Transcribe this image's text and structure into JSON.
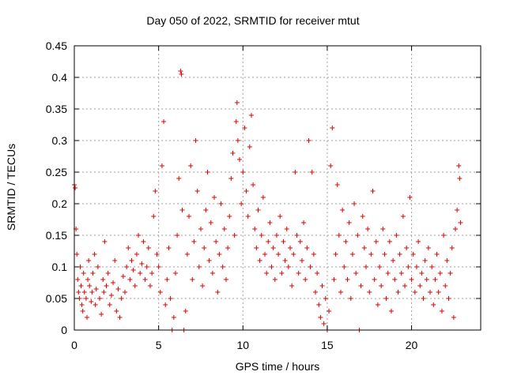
{
  "chart_data": {
    "type": "scatter",
    "title": "Day 050 of 2022, SRMTID for receiver mtut",
    "xlabel": "GPS time / hours",
    "ylabel": "SRMTID / TECUs",
    "xlim": [
      0,
      24.1
    ],
    "ylim": [
      0,
      0.45
    ],
    "xticks": [
      0,
      5,
      10,
      15,
      20
    ],
    "yticks": [
      0,
      0.05,
      0.1,
      0.15,
      0.2,
      0.25,
      0.3,
      0.35,
      0.4,
      0.45
    ],
    "ytick_labels": [
      "0",
      "0.05",
      "0.1",
      "0.15",
      "0.2",
      "0.25",
      "0.3",
      "0.35",
      "0.4",
      "0.45"
    ],
    "grid": true,
    "marker": "+",
    "color": "#e00000",
    "series": [
      {
        "points": [
          [
            0.0,
            0.23
          ],
          [
            0.05,
            0.225
          ],
          [
            0.1,
            0.16
          ],
          [
            0.15,
            0.12
          ],
          [
            0.2,
            0.08
          ],
          [
            0.25,
            0.06
          ],
          [
            0.3,
            0.05
          ],
          [
            0.35,
            0.1
          ],
          [
            0.4,
            0.07
          ],
          [
            0.45,
            0.04
          ],
          [
            0.5,
            0.03
          ],
          [
            0.55,
            0.09
          ],
          [
            0.6,
            0.06
          ],
          [
            0.7,
            0.05
          ],
          [
            0.75,
            0.02
          ],
          [
            0.8,
            0.08
          ],
          [
            0.85,
            0.11
          ],
          [
            0.9,
            0.07
          ],
          [
            1.0,
            0.045
          ],
          [
            1.05,
            0.06
          ],
          [
            1.1,
            0.09
          ],
          [
            1.2,
            0.12
          ],
          [
            1.25,
            0.04
          ],
          [
            1.3,
            0.065
          ],
          [
            1.4,
            0.1
          ],
          [
            1.5,
            0.05
          ],
          [
            1.6,
            0.025
          ],
          [
            1.7,
            0.08
          ],
          [
            1.75,
            0.06
          ],
          [
            1.8,
            0.14
          ],
          [
            1.9,
            0.07
          ],
          [
            2.0,
            0.09
          ],
          [
            2.1,
            0.04
          ],
          [
            2.2,
            0.055
          ],
          [
            2.3,
            0.075
          ],
          [
            2.4,
            0.11
          ],
          [
            2.5,
            0.03
          ],
          [
            2.6,
            0.065
          ],
          [
            2.7,
            0.02
          ],
          [
            2.8,
            0.05
          ],
          [
            2.9,
            0.085
          ],
          [
            3.0,
            0.06
          ],
          [
            3.1,
            0.1
          ],
          [
            3.2,
            0.13
          ],
          [
            3.3,
            0.08
          ],
          [
            3.4,
            0.11
          ],
          [
            3.5,
            0.095
          ],
          [
            3.6,
            0.07
          ],
          [
            3.7,
            0.12
          ],
          [
            3.8,
            0.15
          ],
          [
            3.9,
            0.09
          ],
          [
            4.0,
            0.105
          ],
          [
            4.1,
            0.14
          ],
          [
            4.2,
            0.08
          ],
          [
            4.3,
            0.1
          ],
          [
            4.4,
            0.13
          ],
          [
            4.5,
            0.07
          ],
          [
            4.6,
            0.09
          ],
          [
            4.7,
            0.18
          ],
          [
            4.8,
            0.22
          ],
          [
            4.9,
            0.12
          ],
          [
            5.0,
            0.1
          ],
          [
            5.1,
            0.06
          ],
          [
            5.2,
            0.26
          ],
          [
            5.3,
            0.33
          ],
          [
            5.4,
            0.04
          ],
          [
            5.5,
            0.08
          ],
          [
            5.6,
            0.13
          ],
          [
            5.7,
            0.05
          ],
          [
            5.8,
            0.0
          ],
          [
            5.9,
            0.02
          ],
          [
            6.0,
            0.09
          ],
          [
            6.1,
            0.15
          ],
          [
            6.2,
            0.24
          ],
          [
            6.3,
            0.41
          ],
          [
            6.35,
            0.405
          ],
          [
            6.4,
            0.19
          ],
          [
            6.5,
            0.0
          ],
          [
            6.6,
            0.03
          ],
          [
            6.7,
            0.12
          ],
          [
            6.8,
            0.18
          ],
          [
            6.9,
            0.26
          ],
          [
            7.0,
            0.08
          ],
          [
            7.1,
            0.14
          ],
          [
            7.2,
            0.3
          ],
          [
            7.3,
            0.22
          ],
          [
            7.4,
            0.1
          ],
          [
            7.5,
            0.16
          ],
          [
            7.6,
            0.07
          ],
          [
            7.7,
            0.13
          ],
          [
            7.8,
            0.19
          ],
          [
            7.9,
            0.25
          ],
          [
            8.0,
            0.11
          ],
          [
            8.1,
            0.17
          ],
          [
            8.2,
            0.09
          ],
          [
            8.3,
            0.21
          ],
          [
            8.4,
            0.14
          ],
          [
            8.5,
            0.06
          ],
          [
            8.6,
            0.12
          ],
          [
            8.7,
            0.2
          ],
          [
            8.8,
            0.1
          ],
          [
            8.9,
            0.16
          ],
          [
            9.0,
            0.08
          ],
          [
            9.1,
            0.13
          ],
          [
            9.2,
            0.18
          ],
          [
            9.3,
            0.24
          ],
          [
            9.4,
            0.28
          ],
          [
            9.5,
            0.15
          ],
          [
            9.6,
            0.33
          ],
          [
            9.65,
            0.36
          ],
          [
            9.7,
            0.3
          ],
          [
            9.8,
            0.27
          ],
          [
            9.9,
            0.2
          ],
          [
            10.0,
            0.25
          ],
          [
            10.1,
            0.32
          ],
          [
            10.2,
            0.22
          ],
          [
            10.3,
            0.18
          ],
          [
            10.4,
            0.29
          ],
          [
            10.5,
            0.34
          ],
          [
            10.6,
            0.23
          ],
          [
            10.7,
            0.16
          ],
          [
            10.8,
            0.13
          ],
          [
            10.9,
            0.19
          ],
          [
            11.0,
            0.11
          ],
          [
            11.1,
            0.15
          ],
          [
            11.2,
            0.21
          ],
          [
            11.3,
            0.12
          ],
          [
            11.4,
            0.09
          ],
          [
            11.5,
            0.14
          ],
          [
            11.6,
            0.17
          ],
          [
            11.7,
            0.1
          ],
          [
            11.8,
            0.13
          ],
          [
            11.9,
            0.08
          ],
          [
            12.0,
            0.15
          ],
          [
            12.1,
            0.12
          ],
          [
            12.2,
            0.18
          ],
          [
            12.3,
            0.09
          ],
          [
            12.4,
            0.14
          ],
          [
            12.5,
            0.11
          ],
          [
            12.6,
            0.16
          ],
          [
            12.7,
            0.1
          ],
          [
            12.8,
            0.13
          ],
          [
            12.9,
            0.07
          ],
          [
            13.0,
            0.12
          ],
          [
            13.1,
            0.25
          ],
          [
            13.2,
            0.15
          ],
          [
            13.3,
            0.09
          ],
          [
            13.4,
            0.14
          ],
          [
            13.5,
            0.11
          ],
          [
            13.6,
            0.17
          ],
          [
            13.7,
            0.08
          ],
          [
            13.8,
            0.13
          ],
          [
            13.9,
            0.3
          ],
          [
            14.0,
            0.1
          ],
          [
            14.1,
            0.25
          ],
          [
            14.2,
            0.12
          ],
          [
            14.3,
            0.06
          ],
          [
            14.4,
            0.09
          ],
          [
            14.5,
            0.04
          ],
          [
            14.6,
            0.02
          ],
          [
            14.7,
            0.07
          ],
          [
            14.8,
            0.01
          ],
          [
            14.9,
            0.05
          ],
          [
            15.0,
            0.0
          ],
          [
            15.1,
            0.03
          ],
          [
            15.2,
            0.26
          ],
          [
            15.3,
            0.32
          ],
          [
            15.4,
            0.08
          ],
          [
            15.5,
            0.12
          ],
          [
            15.6,
            0.23
          ],
          [
            15.7,
            0.15
          ],
          [
            15.8,
            0.06
          ],
          [
            15.9,
            0.19
          ],
          [
            16.0,
            0.1
          ],
          [
            16.1,
            0.14
          ],
          [
            16.2,
            0.08
          ],
          [
            16.3,
            0.17
          ],
          [
            16.4,
            0.05
          ],
          [
            16.5,
            0.12
          ],
          [
            16.6,
            0.2
          ],
          [
            16.7,
            0.09
          ],
          [
            16.8,
            0.15
          ],
          [
            16.9,
            0.0
          ],
          [
            17.0,
            0.07
          ],
          [
            17.1,
            0.18
          ],
          [
            17.2,
            0.13
          ],
          [
            17.3,
            0.1
          ],
          [
            17.4,
            0.16
          ],
          [
            17.5,
            0.06
          ],
          [
            17.6,
            0.12
          ],
          [
            17.7,
            0.22
          ],
          [
            17.8,
            0.08
          ],
          [
            17.9,
            0.14
          ],
          [
            18.0,
            0.04
          ],
          [
            18.1,
            0.1
          ],
          [
            18.2,
            0.07
          ],
          [
            18.3,
            0.16
          ],
          [
            18.4,
            0.12
          ],
          [
            18.5,
            0.05
          ],
          [
            18.6,
            0.09
          ],
          [
            18.7,
            0.14
          ],
          [
            18.8,
            0.03
          ],
          [
            18.9,
            0.11
          ],
          [
            19.0,
            0.08
          ],
          [
            19.1,
            0.15
          ],
          [
            19.2,
            0.06
          ],
          [
            19.3,
            0.12
          ],
          [
            19.4,
            0.09
          ],
          [
            19.5,
            0.18
          ],
          [
            19.6,
            0.07
          ],
          [
            19.7,
            0.13
          ],
          [
            19.8,
            0.1
          ],
          [
            19.9,
            0.21
          ],
          [
            20.0,
            0.08
          ],
          [
            20.1,
            0.12
          ],
          [
            20.2,
            0.06
          ],
          [
            20.3,
            0.1
          ],
          [
            20.4,
            0.14
          ],
          [
            20.5,
            0.07
          ],
          [
            20.6,
            0.09
          ],
          [
            20.7,
            0.05
          ],
          [
            20.8,
            0.11
          ],
          [
            20.9,
            0.08
          ],
          [
            21.0,
            0.13
          ],
          [
            21.1,
            0.06
          ],
          [
            21.2,
            0.1
          ],
          [
            21.3,
            0.04
          ],
          [
            21.4,
            0.08
          ],
          [
            21.5,
            0.12
          ],
          [
            21.6,
            0.06
          ],
          [
            21.7,
            0.09
          ],
          [
            21.8,
            0.03
          ],
          [
            21.9,
            0.15
          ],
          [
            22.0,
            0.07
          ],
          [
            22.1,
            0.11
          ],
          [
            22.2,
            0.05
          ],
          [
            22.3,
            0.09
          ],
          [
            22.4,
            0.13
          ],
          [
            22.5,
            0.02
          ],
          [
            22.6,
            0.16
          ],
          [
            22.7,
            0.19
          ],
          [
            22.8,
            0.26
          ],
          [
            22.85,
            0.24
          ],
          [
            22.9,
            0.17
          ]
        ]
      }
    ]
  }
}
